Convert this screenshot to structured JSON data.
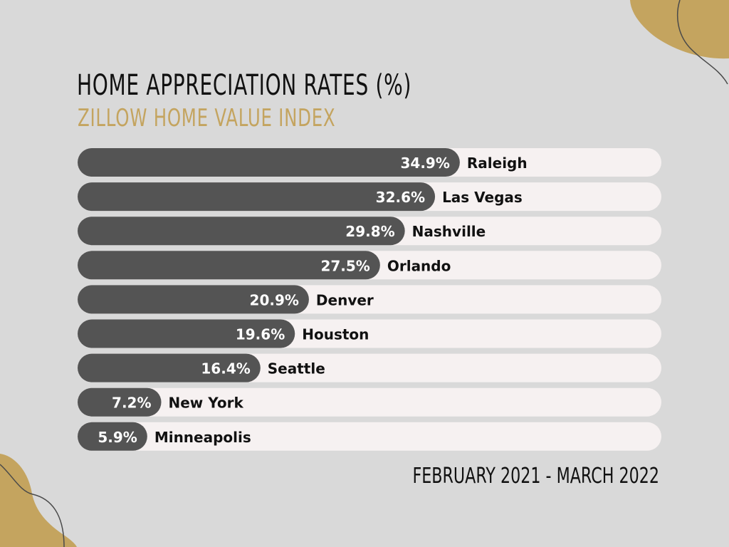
{
  "title": "HOME APPRECIATION RATES (%)",
  "subtitle": "ZILLOW HOME VALUE INDEX",
  "footer": "FEBRUARY 2021 - MARCH 2022",
  "colors": {
    "background": "#d9d9d9",
    "accent": "#c4a45f",
    "bar_fill": "#545454",
    "track": "#f6f1f1"
  },
  "chart_data": {
    "type": "bar",
    "orientation": "horizontal",
    "categories": [
      "Raleigh",
      "Las Vegas",
      "Nashville",
      "Orlando",
      "Denver",
      "Houston",
      "Seattle",
      "New York",
      "Minneapolis"
    ],
    "values": [
      34.9,
      32.6,
      29.8,
      27.5,
      20.9,
      19.6,
      16.4,
      7.2,
      5.9
    ],
    "value_labels": [
      "34.9%",
      "32.6%",
      "29.8%",
      "27.5%",
      "20.9%",
      "19.6%",
      "16.4%",
      "7.2%",
      "5.9%"
    ],
    "title": "HOME APPRECIATION RATES (%)",
    "subtitle": "ZILLOW HOME VALUE INDEX",
    "grid": false,
    "legend": "none"
  }
}
